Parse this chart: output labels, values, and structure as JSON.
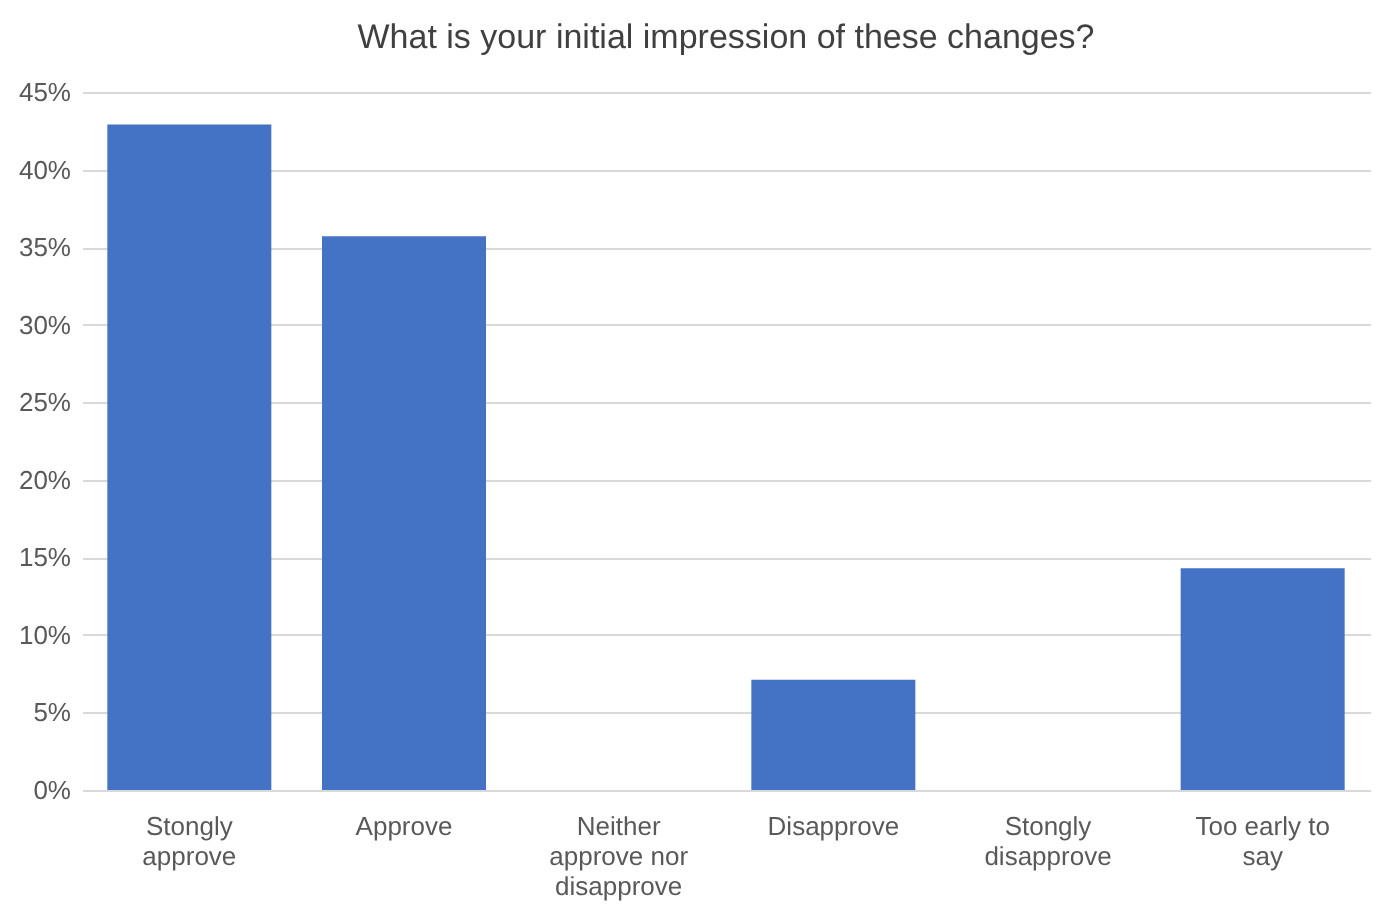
{
  "chart_data": {
    "type": "bar",
    "title": "What is your initial impression of these changes?",
    "categories": [
      "Stongly approve",
      "Approve",
      "Neither approve nor disapprove",
      "Disapprove",
      "Stongly disapprove",
      "Too early to say"
    ],
    "values": [
      42.9,
      35.7,
      0,
      7.1,
      0,
      14.3
    ],
    "color": "#4472c4",
    "ylim": [
      0,
      45
    ],
    "yticks": [
      {
        "value": 0,
        "label": "0%"
      },
      {
        "value": 5,
        "label": "5%"
      },
      {
        "value": 10,
        "label": "10%"
      },
      {
        "value": 15,
        "label": "15%"
      },
      {
        "value": 20,
        "label": "20%"
      },
      {
        "value": 25,
        "label": "25%"
      },
      {
        "value": 30,
        "label": "30%"
      },
      {
        "value": 35,
        "label": "35%"
      },
      {
        "value": 40,
        "label": "40%"
      },
      {
        "value": 45,
        "label": "45%"
      }
    ],
    "grid": "y"
  }
}
